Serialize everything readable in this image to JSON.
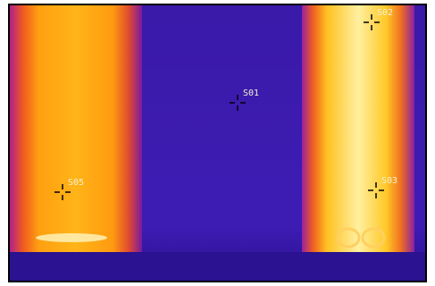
{
  "markers": [
    {
      "label": "S01"
    },
    {
      "label": "S02"
    },
    {
      "label": "S03"
    },
    {
      "label": "S05"
    }
  ]
}
